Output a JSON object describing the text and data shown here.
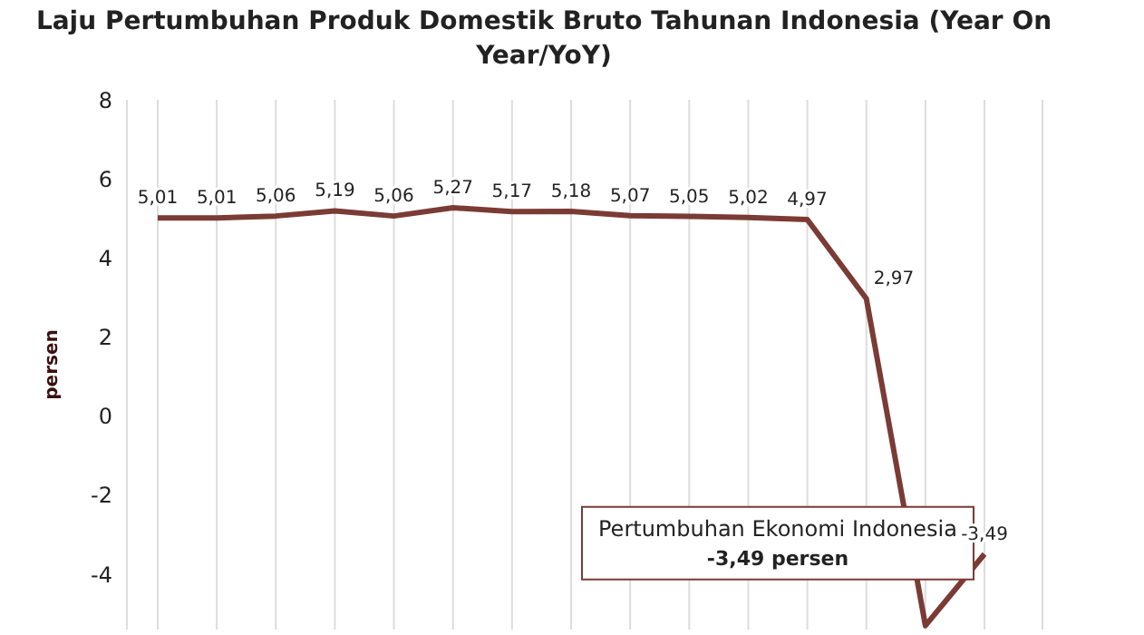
{
  "chart_data": {
    "type": "line",
    "title": "Laju Pertumbuhan Produk Domestik Bruto Tahunan Indonesia (Year On Year/YoY)",
    "ylabel": "persen",
    "categories": [
      null,
      null,
      null,
      null,
      null,
      null,
      null,
      null,
      null,
      null,
      null,
      null,
      null,
      null,
      null
    ],
    "series": [
      {
        "color": "#7b3b35",
        "values": [
          5.01,
          5.01,
          5.06,
          5.19,
          5.06,
          5.27,
          5.17,
          5.18,
          5.07,
          5.05,
          5.02,
          4.97,
          2.97,
          -5.3,
          -3.49
        ],
        "value_labels": [
          "5,01",
          "5,01",
          "5,06",
          "5,19",
          "5,06",
          "5,27",
          "5,17",
          "5,18",
          "5,07",
          "5,05",
          "5,02",
          "4,97",
          "2,97",
          null,
          "-3,49"
        ]
      }
    ],
    "ylim": [
      -5.4,
      8
    ],
    "yticks": [
      {
        "value": 8,
        "label": "8"
      },
      {
        "value": 6,
        "label": "6"
      },
      {
        "value": 4,
        "label": "4"
      },
      {
        "value": 2,
        "label": "2"
      },
      {
        "value": 0,
        "label": "0"
      },
      {
        "value": -2,
        "label": "-2"
      },
      {
        "value": -4,
        "label": "-4"
      }
    ],
    "grid": "x",
    "marker": "none",
    "line_style": "solid",
    "tick_labels": "y",
    "annotations": [
      "Pertumbuhan Ekonomi Indonesia\n-3,49 persen"
    ]
  }
}
